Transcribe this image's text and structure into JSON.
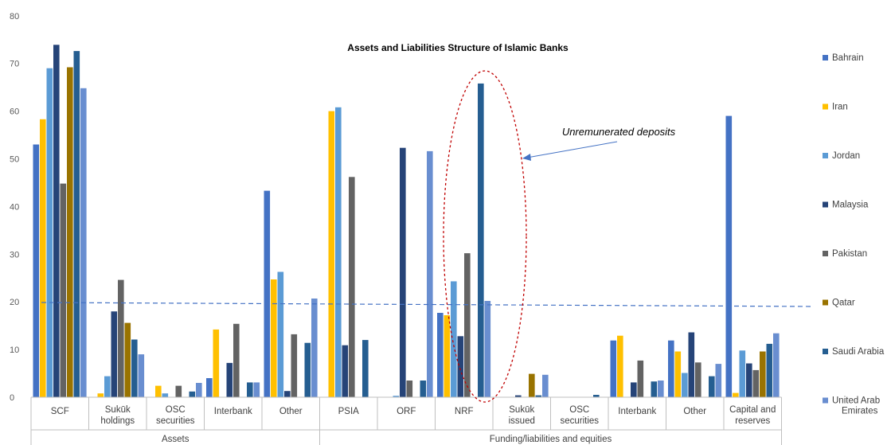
{
  "chart_data": {
    "type": "bar",
    "title": "Assets and Liabilities Structure of Islamic Banks",
    "xlabel": "",
    "ylabel": "",
    "ylim": [
      0,
      80
    ],
    "yticks": [
      0,
      10,
      20,
      30,
      40,
      50,
      60,
      70,
      80
    ],
    "grid": false,
    "legend_position": "right",
    "categories": [
      [
        "SCF"
      ],
      [
        "Sukūk",
        "holdings"
      ],
      [
        "OSC",
        "securities"
      ],
      [
        "Interbank"
      ],
      [
        "Other"
      ],
      [
        "PSIA"
      ],
      [
        "ORF"
      ],
      [
        "NRF"
      ],
      [
        "Sukūk",
        "issued"
      ],
      [
        "OSC",
        "securities"
      ],
      [
        "Interbank"
      ],
      [
        "Other"
      ],
      [
        "Capital and",
        "reserves"
      ]
    ],
    "groups": [
      {
        "label": "Assets",
        "count": 5
      },
      {
        "label": "Funding/liabilities and equities",
        "count": 8
      }
    ],
    "series": [
      {
        "name": "Bahrain",
        "color": "#4472C4",
        "values": [
          53,
          0,
          0,
          4,
          43.3,
          0,
          0,
          17.7,
          0,
          0,
          11.9,
          11.9,
          59
        ]
      },
      {
        "name": "Iran",
        "color": "#FFC000",
        "values": [
          58.3,
          0.8,
          2.4,
          14.2,
          24.7,
          60,
          0,
          17.2,
          0,
          0,
          12.9,
          9.6,
          0.9
        ]
      },
      {
        "name": "Jordan",
        "color": "#5B9BD5",
        "values": [
          69,
          4.4,
          0.8,
          0,
          26.3,
          60.8,
          0.3,
          24.3,
          0,
          0,
          0,
          5.1,
          9.8
        ]
      },
      {
        "name": "Malaysia",
        "color": "#264478",
        "values": [
          73.9,
          18,
          0,
          7.2,
          1.3,
          10.9,
          52.3,
          12.8,
          0.4,
          0,
          3.1,
          13.6,
          7.1
        ]
      },
      {
        "name": "Pakistan",
        "color": "#636363",
        "values": [
          44.8,
          24.6,
          2.4,
          15.4,
          13.2,
          46.2,
          3.5,
          30.2,
          0,
          0,
          7.7,
          7.3,
          5.7
        ]
      },
      {
        "name": "Qatar",
        "color": "#997300",
        "values": [
          69.2,
          15.6,
          0,
          0,
          0,
          0,
          0,
          0,
          4.9,
          0,
          0,
          0,
          9.6
        ]
      },
      {
        "name": "Saudi Arabia",
        "color": "#255E91",
        "values": [
          72.6,
          12.1,
          1.2,
          3.1,
          11.4,
          12,
          3.5,
          65.8,
          0.4,
          0.5,
          3.3,
          4.4,
          11.2
        ]
      },
      {
        "name": "United Arab Emirates",
        "color": "#698ED0",
        "values": [
          64.8,
          9,
          3,
          3.1,
          20.7,
          0,
          51.6,
          20.2,
          4.7,
          0,
          3.5,
          7,
          13.4
        ]
      }
    ],
    "annotations": [
      {
        "text": "Unremunerated deposits"
      }
    ]
  }
}
